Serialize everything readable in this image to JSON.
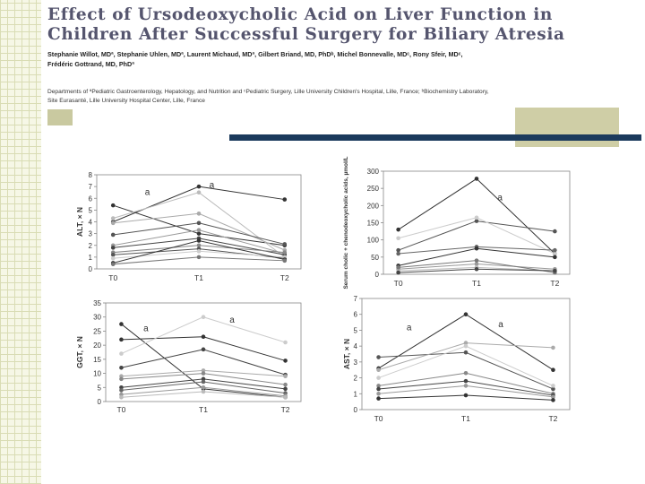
{
  "slide": {
    "title_line1": "Effect of Ursodeoxycholic Acid on Liver Function in",
    "title_line2": "Children After Successful Surgery for Biliary Atresia",
    "authors_line1": "Stephanie Willot, MDª, Stephanie Uhlen, MDª, Laurent Michaud, MDª, Gilbert Briand, MD, PhDᵇ, Michel Bonnevalle, MDᶜ, Rony Sfeir, MDᶜ,",
    "authors_line2": "Frédéric Gottrand, MD, PhDª",
    "affiliation_line1": "Departments of ªPediatric Gastroenterology, Hepatology, and Nutrition and ᶜPediatric Surgery, Lille University Children's Hospital, Lille, France; ᵇBiochemistry Laboratory,",
    "affiliation_line2": "Site Eurasanté, Lille University Hospital Center, Lille, France",
    "accent_colors": {
      "navy_bar": "#1b3a5c",
      "olive_box": "#cfcea6",
      "grid_strip": "#f6f7e6"
    }
  },
  "chart_data": [
    {
      "type": "line",
      "id": "alt",
      "ylabel": "ALT, × N",
      "x": [
        "T0",
        "T1",
        "T2"
      ],
      "ylim": [
        0,
        8
      ],
      "yticks": [
        "0",
        "1",
        "2",
        "3",
        "4",
        "5",
        "6",
        "7",
        "8"
      ],
      "annotations": [
        {
          "text": "a",
          "at": [
            0.4,
            6.3
          ]
        },
        {
          "text": "a",
          "at": [
            1.15,
            6.9
          ]
        }
      ],
      "series": [
        {
          "values": [
            4.0,
            7.0,
            5.9
          ],
          "color": "#333333"
        },
        {
          "values": [
            5.4,
            3.0,
            2.0
          ],
          "color": "#333333"
        },
        {
          "values": [
            4.3,
            6.5,
            1.0
          ],
          "color": "#bbbbbb"
        },
        {
          "values": [
            3.9,
            4.7,
            1.6
          ],
          "color": "#aaaaaa"
        },
        {
          "values": [
            2.9,
            3.9,
            2.1
          ],
          "color": "#555555"
        },
        {
          "values": [
            2.0,
            3.3,
            1.3
          ],
          "color": "#999999"
        },
        {
          "values": [
            1.8,
            2.6,
            1.2
          ],
          "color": "#444444"
        },
        {
          "values": [
            1.4,
            2.0,
            1.4
          ],
          "color": "#888888"
        },
        {
          "values": [
            1.2,
            1.7,
            0.9
          ],
          "color": "#555555"
        },
        {
          "values": [
            0.9,
            1.5,
            1.0
          ],
          "color": "#cccccc"
        },
        {
          "values": [
            0.5,
            2.4,
            0.8
          ],
          "color": "#333333"
        },
        {
          "values": [
            0.4,
            1.0,
            0.7
          ],
          "color": "#777777"
        }
      ]
    },
    {
      "type": "line",
      "id": "bile",
      "ylabel": "Serum cholic + chenodeoxycholic acids, µmol/L",
      "x": [
        "T0",
        "T1",
        "T2"
      ],
      "ylim": [
        0,
        300
      ],
      "yticks": [
        "0",
        "50",
        "100",
        "150",
        "200",
        "250",
        "300"
      ],
      "annotations": [
        {
          "text": "a",
          "at": [
            1.3,
            215
          ]
        }
      ],
      "series": [
        {
          "values": [
            130,
            278,
            60
          ],
          "color": "#333333"
        },
        {
          "values": [
            70,
            155,
            125
          ],
          "color": "#555555"
        },
        {
          "values": [
            105,
            165,
            60
          ],
          "color": "#cccccc"
        },
        {
          "values": [
            60,
            80,
            70
          ],
          "color": "#666666"
        },
        {
          "values": [
            25,
            75,
            50
          ],
          "color": "#333333"
        },
        {
          "values": [
            15,
            30,
            15
          ],
          "color": "#999999"
        },
        {
          "values": [
            10,
            20,
            10
          ],
          "color": "#bbbbbb"
        },
        {
          "values": [
            20,
            40,
            5
          ],
          "color": "#777777"
        },
        {
          "values": [
            5,
            15,
            10
          ],
          "color": "#444444"
        }
      ]
    },
    {
      "type": "line",
      "id": "ggt",
      "ylabel": "GGT, × N",
      "x": [
        "T0",
        "T1",
        "T2"
      ],
      "ylim": [
        0,
        35
      ],
      "yticks": [
        "0",
        "5",
        "10",
        "15",
        "20",
        "25",
        "30",
        "35"
      ],
      "annotations": [
        {
          "text": "a",
          "at": [
            0.3,
            25
          ]
        },
        {
          "text": "a",
          "at": [
            1.35,
            28
          ]
        }
      ],
      "series": [
        {
          "values": [
            27.5,
            4.5,
            1.5
          ],
          "color": "#333333"
        },
        {
          "values": [
            22,
            23,
            14.5
          ],
          "color": "#333333"
        },
        {
          "values": [
            17,
            30,
            21
          ],
          "color": "#cccccc"
        },
        {
          "values": [
            12,
            18.5,
            9.5
          ],
          "color": "#444444"
        },
        {
          "values": [
            9,
            11,
            9
          ],
          "color": "#aaaaaa"
        },
        {
          "values": [
            8,
            10,
            6
          ],
          "color": "#888888"
        },
        {
          "values": [
            5,
            8,
            4.5
          ],
          "color": "#444444"
        },
        {
          "values": [
            4,
            7,
            3
          ],
          "color": "#666666"
        },
        {
          "values": [
            2.5,
            5,
            2
          ],
          "color": "#999999"
        },
        {
          "values": [
            1.5,
            3.5,
            1.5
          ],
          "color": "#bbbbbb"
        }
      ]
    },
    {
      "type": "line",
      "id": "ast",
      "ylabel": "AST, × N",
      "x": [
        "T0",
        "T1",
        "T2"
      ],
      "ylim": [
        0,
        7
      ],
      "yticks": [
        "0",
        "1",
        "2",
        "3",
        "4",
        "5",
        "6",
        "7"
      ],
      "annotations": [
        {
          "text": "a",
          "at": [
            0.35,
            5.0
          ]
        },
        {
          "text": "a",
          "at": [
            1.4,
            5.2
          ]
        }
      ],
      "series": [
        {
          "values": [
            2.6,
            6.0,
            2.5
          ],
          "color": "#333333"
        },
        {
          "values": [
            3.3,
            3.6,
            1.3
          ],
          "color": "#555555"
        },
        {
          "values": [
            2.5,
            4.2,
            3.9
          ],
          "color": "#aaaaaa"
        },
        {
          "values": [
            2.0,
            4.0,
            1.5
          ],
          "color": "#cccccc"
        },
        {
          "values": [
            1.5,
            2.3,
            1.0
          ],
          "color": "#888888"
        },
        {
          "values": [
            1.3,
            1.8,
            0.9
          ],
          "color": "#444444"
        },
        {
          "values": [
            1.0,
            1.5,
            0.8
          ],
          "color": "#999999"
        },
        {
          "values": [
            0.7,
            0.9,
            0.6
          ],
          "color": "#333333"
        }
      ]
    }
  ]
}
